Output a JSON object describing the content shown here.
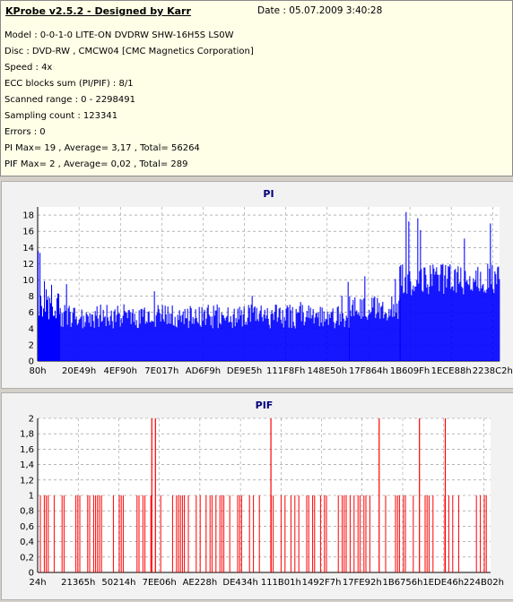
{
  "header": {
    "title": "KProbe v2.5.2 - Designed by Karr",
    "date": "Date : 05.07.2009 3:40:28",
    "lines": [
      "Model : 0-0-1-0 LITE-ON DVDRW SHW-16H5S  LS0W",
      "Disc : DVD-RW , CMCW04 [CMC Magnetics Corporation]",
      "Speed : 4x",
      "ECC blocks sum (PI/PIF) : 8/1",
      "Scanned range : 0 - 2298491",
      "Sampling count : 123341",
      "Errors : 0",
      "PI Max= 19 , Average= 3,17 , Total= 56264",
      "PIF Max= 2 , Average= 0,02 , Total= 289"
    ]
  },
  "colors": {
    "pi": "#0000ff",
    "pif": "#ff0000",
    "title": "#00007a",
    "grid": "#888888",
    "bg": "#f2f2f2"
  },
  "chart_data": [
    {
      "type": "bar",
      "title": "PI",
      "xlabel": "",
      "ylabel": "",
      "ylim": [
        0,
        19
      ],
      "yticks": [
        "0",
        "2",
        "4",
        "6",
        "8",
        "10",
        "12",
        "14",
        "16",
        "18"
      ],
      "xtick_labels": [
        "80h",
        "20E49h",
        "4EF90h",
        "7E017h",
        "AD6F9h",
        "DE9E5h",
        "111F8Fh",
        "148E50h",
        "17F864h",
        "1B609Fh",
        "1ECE88h",
        "2238C2h"
      ],
      "xlim": [
        0,
        2298491
      ],
      "series": [
        {
          "segments": [
            {
              "x": [
                0,
                110000
              ],
              "base_min": 4,
              "base_max": 10,
              "peaks": [
                14,
                16
              ]
            },
            {
              "x": [
                110000,
                1550000
              ],
              "base_min": 4,
              "base_max": 7,
              "peaks": [
                8,
                10
              ]
            },
            {
              "x": [
                1550000,
                1800000
              ],
              "base_min": 5,
              "base_max": 8,
              "peaks": [
                12
              ]
            },
            {
              "x": [
                1800000,
                2298491
              ],
              "base_min": 8,
              "base_max": 12,
              "peaks": [
                17,
                19
              ]
            }
          ],
          "values_note_max": 19
        }
      ]
    },
    {
      "type": "bar",
      "title": "PIF",
      "xlabel": "",
      "ylabel": "",
      "ylim": [
        0,
        2
      ],
      "yticks": [
        "0",
        "0,2",
        "0,4",
        "0,6",
        "0,8",
        "1",
        "1,2",
        "1,4",
        "1,6",
        "1,8",
        "2"
      ],
      "xtick_labels": [
        "24h",
        "21365h",
        "50214h",
        "7EE06h",
        "AE228h",
        "DE434h",
        "111B01h",
        "1492F7h",
        "17FE92h",
        "1B6756h",
        "1EDE46h",
        "224B02h"
      ],
      "xlim": [
        0,
        2298491
      ],
      "series": [
        {
          "ones_density": 0.55,
          "twos_at": [
            0.252,
            0.26,
            0.515,
            0.754,
            0.843,
            0.9
          ]
        }
      ]
    }
  ]
}
